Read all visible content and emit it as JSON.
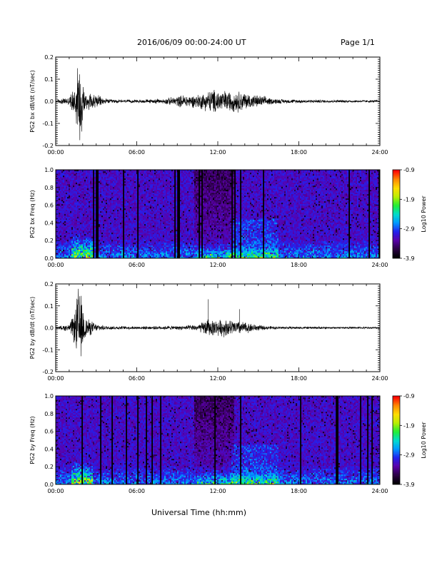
{
  "header": {
    "title": "2016/06/09  00:00-24:00 UT",
    "page": "Page 1/1"
  },
  "footer": {
    "xlabel": "Universal Time (hh:mm)"
  },
  "colors": {
    "trace": "#000000",
    "spectrogram_scale": [
      "#000000",
      "#2a0044",
      "#5a00aa",
      "#2222ee",
      "#0099ff",
      "#00ddcc",
      "#22ee33",
      "#bbee00",
      "#ffdd00",
      "#ff8800",
      "#ff0000"
    ]
  },
  "chart_data": [
    {
      "type": "line",
      "ylabel": "PG2 bx dB/dt (nT/sec)",
      "xlim_hours": [
        0,
        24
      ],
      "ylim": [
        -0.2,
        0.2
      ],
      "xticks": [
        "00:00",
        "06:00",
        "12:00",
        "18:00",
        "24:00"
      ],
      "yticks": [
        "-0.2",
        "-0.1",
        "0.0",
        "0.1",
        "0.2"
      ],
      "envelope": {
        "x_hours": [
          0,
          0.5,
          1.0,
          1.5,
          1.6,
          1.8,
          2.0,
          2.2,
          2.5,
          2.8,
          3.0,
          3.3,
          3.6,
          4.0,
          5.0,
          6.0,
          7.0,
          8.0,
          8.5,
          9.0,
          9.5,
          10.0,
          10.5,
          11.0,
          11.5,
          12.0,
          12.5,
          13.0,
          13.5,
          14.0,
          14.5,
          15.0,
          15.5,
          16.0,
          17.0,
          18.0,
          19.0,
          20.0,
          21.0,
          22.0,
          23.0,
          24.0
        ],
        "amplitude": [
          0.008,
          0.015,
          0.02,
          0.09,
          0.22,
          0.21,
          0.12,
          0.04,
          0.05,
          0.04,
          0.035,
          0.025,
          0.015,
          0.01,
          0.008,
          0.008,
          0.01,
          0.012,
          0.02,
          0.025,
          0.035,
          0.03,
          0.035,
          0.045,
          0.06,
          0.06,
          0.055,
          0.05,
          0.055,
          0.045,
          0.035,
          0.03,
          0.025,
          0.015,
          0.01,
          0.009,
          0.008,
          0.007,
          0.007,
          0.006,
          0.006,
          0.006
        ]
      }
    },
    {
      "type": "heatmap",
      "ylabel": "PG2 bx Freq (Hz)",
      "colorbar_label": "Log10 Power",
      "colorbar_ticks": [
        "-0.9",
        "-1.9",
        "-2.9",
        "-3.9"
      ],
      "clim": [
        -3.9,
        -0.9
      ],
      "xlim_hours": [
        0,
        24
      ],
      "ylim": [
        0,
        1
      ],
      "xticks": [
        "00:00",
        "06:00",
        "12:00",
        "18:00",
        "24:00"
      ],
      "yticks": [
        "0.0",
        "0.2",
        "0.4",
        "0.6",
        "0.8",
        "1.0"
      ]
    },
    {
      "type": "line",
      "ylabel": "PG2 by dB/dt (nT/sec)",
      "xlim_hours": [
        0,
        24
      ],
      "ylim": [
        -0.2,
        0.2
      ],
      "xticks": [
        "00:00",
        "06:00",
        "12:00",
        "18:00",
        "24:00"
      ],
      "yticks": [
        "-0.2",
        "-0.1",
        "0.0",
        "0.1",
        "0.2"
      ],
      "envelope": {
        "x_hours": [
          0,
          0.5,
          0.8,
          1.0,
          1.5,
          1.6,
          1.8,
          2.0,
          2.2,
          2.5,
          2.8,
          3.0,
          3.5,
          4.0,
          5.0,
          6.0,
          7.0,
          8.0,
          9.0,
          10.0,
          10.5,
          11.0,
          11.2,
          11.5,
          12.0,
          12.5,
          13.0,
          13.5,
          14.0,
          14.5,
          15.0,
          15.5,
          16.0,
          17.0,
          18.0,
          19.0,
          20.0,
          21.0,
          22.0,
          23.0,
          24.0
        ],
        "amplitude": [
          0.006,
          0.012,
          0.018,
          0.015,
          0.1,
          0.22,
          0.2,
          0.12,
          0.06,
          0.04,
          0.03,
          0.02,
          0.012,
          0.01,
          0.008,
          0.008,
          0.008,
          0.009,
          0.01,
          0.014,
          0.016,
          0.035,
          0.045,
          0.04,
          0.04,
          0.045,
          0.04,
          0.035,
          0.03,
          0.022,
          0.015,
          0.01,
          0.008,
          0.007,
          0.006,
          0.006,
          0.006,
          0.005,
          0.005,
          0.005,
          0.005
        ]
      },
      "spikes": [
        {
          "x_hours": 11.3,
          "y": 0.13
        },
        {
          "x_hours": 13.6,
          "y": 0.085
        }
      ]
    },
    {
      "type": "heatmap",
      "ylabel": "PG2 by Freq (Hz)",
      "colorbar_label": "Log10 Power",
      "colorbar_ticks": [
        "-0.9",
        "-1.9",
        "-2.9",
        "-3.9"
      ],
      "clim": [
        -3.9,
        -0.9
      ],
      "xlim_hours": [
        0,
        24
      ],
      "ylim": [
        0,
        1
      ],
      "xticks": [
        "00:00",
        "06:00",
        "12:00",
        "18:00",
        "24:00"
      ],
      "yticks": [
        "0.0",
        "0.2",
        "0.4",
        "0.6",
        "0.8",
        "1.0"
      ]
    }
  ]
}
